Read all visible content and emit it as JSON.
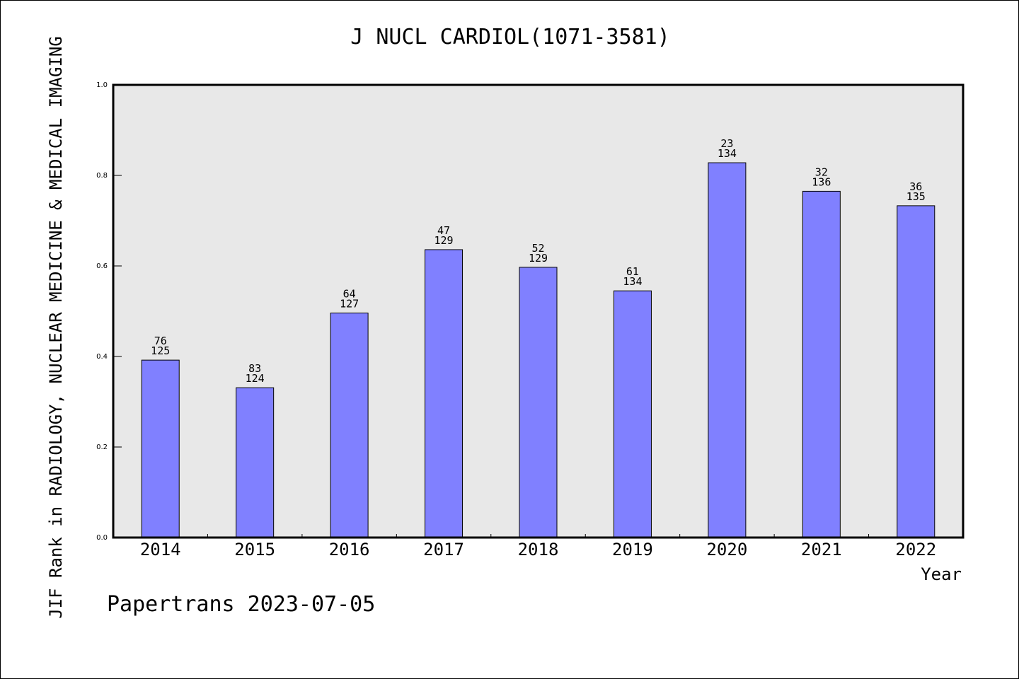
{
  "header": {
    "title": "J NUCL CARDIOL(1071-3581)"
  },
  "footer": {
    "credit": "Papertrans 2023-07-05"
  },
  "colors": {
    "bar": "#8080ff",
    "plot_background": "#e8e8e8"
  },
  "chart_data": {
    "type": "bar",
    "title": "J NUCL CARDIOL(1071-3581)",
    "xlabel": "Year",
    "ylabel": "JIF Rank in RADIOLOGY, NUCLEAR MEDICINE & MEDICAL IMAGING",
    "ylim": [
      0.0,
      1.0
    ],
    "yticks": [
      "0.0",
      "0.2",
      "0.4",
      "0.6",
      "0.8",
      "1.0"
    ],
    "grid": false,
    "categories": [
      "2014",
      "2015",
      "2016",
      "2017",
      "2018",
      "2019",
      "2020",
      "2021",
      "2022"
    ],
    "values": [
      0.392,
      0.331,
      0.496,
      0.636,
      0.597,
      0.545,
      0.828,
      0.765,
      0.733
    ],
    "rank": [
      "76",
      "83",
      "64",
      "47",
      "52",
      "61",
      "23",
      "32",
      "36"
    ],
    "total": [
      "125",
      "124",
      "127",
      "129",
      "129",
      "134",
      "134",
      "136",
      "135"
    ]
  }
}
